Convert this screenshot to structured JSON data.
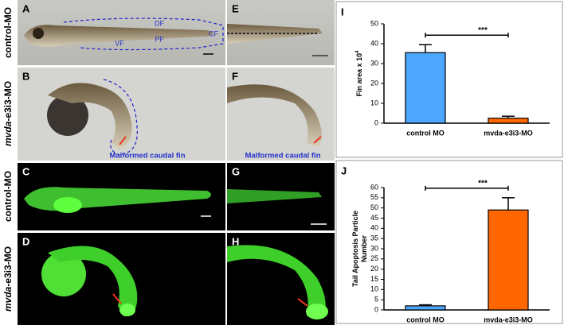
{
  "row_labels": [
    [
      "control-MO"
    ],
    [
      "mvda",
      "-e3i3-MO"
    ],
    [
      "control-MO"
    ],
    [
      "mvda",
      "-e3i3-MO"
    ]
  ],
  "panels": [
    {
      "label": "A",
      "annotations": [
        "DF",
        "VF",
        "PF",
        "CF"
      ]
    },
    {
      "label": "B",
      "annotations": [
        "Malformed caudal fin"
      ]
    },
    {
      "label": "C",
      "annotations": []
    },
    {
      "label": "D",
      "annotations": []
    },
    {
      "label": "E",
      "annotations": []
    },
    {
      "label": "F",
      "annotations": [
        "Malformed caudal fin"
      ]
    },
    {
      "label": "G",
      "annotations": []
    },
    {
      "label": "H",
      "annotations": []
    }
  ],
  "chart_data": [
    {
      "type": "bar",
      "panel_label": "I",
      "ylabel": [
        "Fin area x 10"
      ],
      "ylabel_sup": "4",
      "categories": [
        "control MO",
        "mvda-e3i3-MO"
      ],
      "values": [
        35.5,
        2.5
      ],
      "errors": [
        4,
        1
      ],
      "colors": [
        "#4da6ff",
        "#ff6600"
      ],
      "ylim": [
        0,
        50
      ],
      "yticks": [
        0,
        10,
        20,
        30,
        40,
        50
      ],
      "significance": "***"
    },
    {
      "type": "bar",
      "panel_label": "J",
      "ylabel": [
        "Tail Apoptosis Particle",
        "Number"
      ],
      "categories": [
        "control MO",
        "mvda-e3i3-MO"
      ],
      "values": [
        2,
        49
      ],
      "errors": [
        0.5,
        6
      ],
      "colors": [
        "#4da6ff",
        "#ff6600"
      ],
      "ylim": [
        0,
        60
      ],
      "yticks": [
        0,
        5,
        10,
        15,
        20,
        25,
        30,
        35,
        40,
        45,
        50,
        55,
        60
      ],
      "significance": "***"
    }
  ]
}
